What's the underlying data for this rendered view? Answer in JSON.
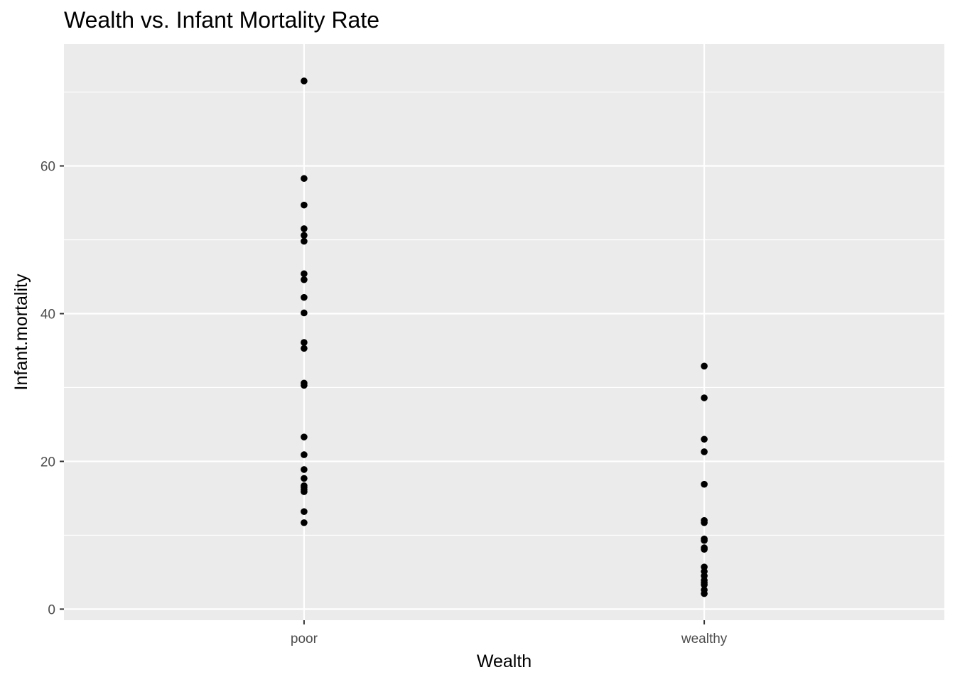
{
  "chart_data": {
    "type": "scatter",
    "title": "Wealth vs. Infant Mortality Rate",
    "xlabel": "Wealth",
    "ylabel": "Infant.mortality",
    "categories": [
      "poor",
      "wealthy"
    ],
    "ylim": [
      -1.5,
      76.5
    ],
    "yticks": [
      0,
      20,
      40,
      60
    ],
    "grid": true,
    "colors": {
      "panel": "#ebebeb",
      "grid": "#ffffff",
      "point": "#000000",
      "tick_text": "#4d4d4d",
      "tick_mark": "#333333"
    },
    "series": [
      {
        "category": "poor",
        "values": [
          71.5,
          58.3,
          54.7,
          51.5,
          50.6,
          49.8,
          45.4,
          44.6,
          42.2,
          40.1,
          36.1,
          35.3,
          30.6,
          30.3,
          23.3,
          20.9,
          18.9,
          17.7,
          16.7,
          16.5,
          16.2,
          15.9,
          13.2,
          11.7
        ]
      },
      {
        "category": "wealthy",
        "values": [
          32.9,
          28.6,
          23.0,
          21.3,
          16.9,
          12.0,
          11.7,
          9.5,
          9.3,
          8.3,
          8.1,
          5.7,
          5.1,
          4.5,
          3.9,
          3.6,
          3.3,
          2.6,
          2.1
        ]
      }
    ]
  }
}
